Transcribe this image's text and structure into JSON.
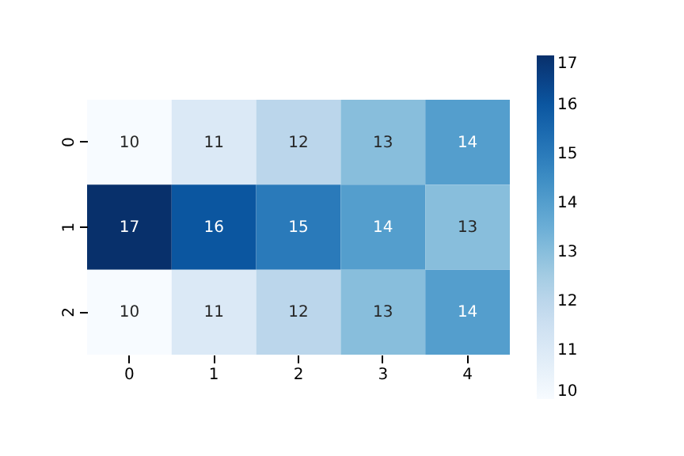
{
  "chart_data": {
    "type": "heatmap",
    "categories": [
      "0",
      "1",
      "2",
      "3",
      "4"
    ],
    "y_categories": [
      "0",
      "1",
      "2"
    ],
    "cells": [
      [
        10,
        11,
        12,
        13,
        14
      ],
      [
        17,
        16,
        15,
        14,
        13
      ],
      [
        10,
        11,
        12,
        13,
        14
      ]
    ],
    "clim": [
      10,
      17
    ],
    "cticks": [
      10,
      11,
      12,
      13,
      14,
      15,
      16,
      17
    ],
    "data_labels": true
  }
}
